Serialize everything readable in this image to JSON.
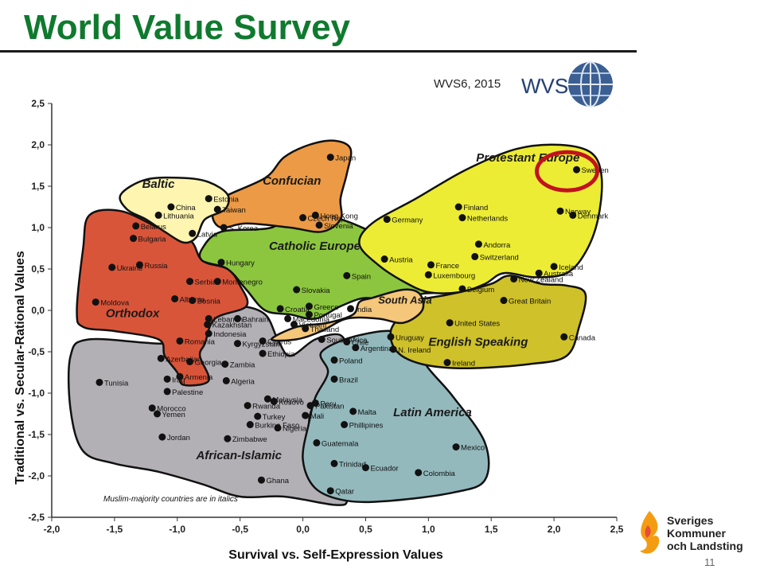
{
  "slide": {
    "title": "World Value Survey",
    "page_number": "11",
    "brand_lines": [
      "Sveriges",
      "Kommuner",
      "och Landsting"
    ]
  },
  "chart_data": {
    "type": "scatter",
    "source_label": "WVS6, 2015",
    "logo_text": "WVS",
    "xlabel": "Survival vs. Self-Expression Values",
    "ylabel": "Traditional vs. Secular-Rational Values",
    "xlim": [
      -2.0,
      2.5
    ],
    "ylim": [
      -2.5,
      2.5
    ],
    "xticks": [
      "-2,0",
      "-1,5",
      "-1,0",
      "-0,5",
      "0,0",
      "0,5",
      "1,0",
      "1,5",
      "2,0",
      "2,5"
    ],
    "yticks": [
      "2,5",
      "2,0",
      "1,5",
      "1,0",
      "0,5",
      "0,0",
      "-0,5",
      "-1,0",
      "-1,5",
      "-2,0",
      "-2,5"
    ],
    "footnote": "Muslim-majority countries are in italics",
    "highlight": "Sweden",
    "clusters": [
      {
        "name": "Baltic",
        "color": "#fdf5b0"
      },
      {
        "name": "Confucian",
        "color": "#ec9a45"
      },
      {
        "name": "Protestant Europe",
        "color": "#ecec35"
      },
      {
        "name": "Catholic Europe",
        "color": "#8cc63f"
      },
      {
        "name": "Orthodox",
        "color": "#d9553a"
      },
      {
        "name": "South Asia",
        "color": "#f5c77a"
      },
      {
        "name": "English Speaking",
        "color": "#cfc12a"
      },
      {
        "name": "Latin America",
        "color": "#93b9bd"
      },
      {
        "name": "African-Islamic",
        "color": "#b2afb5"
      }
    ],
    "points": [
      {
        "name": "Sweden",
        "x": 2.18,
        "y": 1.7
      },
      {
        "name": "Norway",
        "x": 2.05,
        "y": 1.2
      },
      {
        "name": "Denmark",
        "x": 2.15,
        "y": 1.15
      },
      {
        "name": "Finland",
        "x": 1.24,
        "y": 1.25
      },
      {
        "name": "Netherlands",
        "x": 1.27,
        "y": 1.12
      },
      {
        "name": "Germany",
        "x": 0.67,
        "y": 1.1
      },
      {
        "name": "Andorra",
        "x": 1.4,
        "y": 0.8
      },
      {
        "name": "Switzerland",
        "x": 1.37,
        "y": 0.65
      },
      {
        "name": "Iceland",
        "x": 2.0,
        "y": 0.53
      },
      {
        "name": "Australia",
        "x": 1.88,
        "y": 0.45
      },
      {
        "name": "New Zealand",
        "x": 1.68,
        "y": 0.38
      },
      {
        "name": "Luxembourg",
        "x": 1.0,
        "y": 0.43
      },
      {
        "name": "Belgium",
        "x": 1.27,
        "y": 0.26
      },
      {
        "name": "France",
        "x": 1.02,
        "y": 0.55
      },
      {
        "name": "Austria",
        "x": 0.65,
        "y": 0.62
      },
      {
        "name": "Spain",
        "x": 0.35,
        "y": 0.42
      },
      {
        "name": "Great Britain",
        "x": 1.6,
        "y": 0.12
      },
      {
        "name": "United States",
        "x": 1.17,
        "y": -0.15
      },
      {
        "name": "Canada",
        "x": 2.08,
        "y": -0.32
      },
      {
        "name": "Ireland",
        "x": 1.15,
        "y": -0.63
      },
      {
        "name": "N. Ireland",
        "x": 0.72,
        "y": -0.47
      },
      {
        "name": "Japan",
        "x": 0.22,
        "y": 1.85
      },
      {
        "name": "Hong Kong",
        "x": 0.1,
        "y": 1.15
      },
      {
        "name": "Taiwan",
        "x": -0.68,
        "y": 1.22
      },
      {
        "name": "S. Korea",
        "x": -0.63,
        "y": 1.0
      },
      {
        "name": "China",
        "x": -1.05,
        "y": 1.25
      },
      {
        "name": "Estonia",
        "x": -0.75,
        "y": 1.35
      },
      {
        "name": "Lithuania",
        "x": -1.15,
        "y": 1.15
      },
      {
        "name": "Latvia",
        "x": -0.88,
        "y": 0.93
      },
      {
        "name": "Belarus",
        "x": -1.33,
        "y": 1.02
      },
      {
        "name": "Bulgaria",
        "x": -1.35,
        "y": 0.87
      },
      {
        "name": "Czech Rep.",
        "x": 0.0,
        "y": 1.12
      },
      {
        "name": "Slovenia",
        "x": 0.13,
        "y": 1.03
      },
      {
        "name": "Hungary",
        "x": -0.65,
        "y": 0.58
      },
      {
        "name": "Slovakia",
        "x": -0.05,
        "y": 0.25
      },
      {
        "name": "Croatia",
        "x": -0.18,
        "y": 0.02
      },
      {
        "name": "Greece",
        "x": 0.05,
        "y": 0.05
      },
      {
        "name": "Portugal",
        "x": 0.05,
        "y": -0.05
      },
      {
        "name": "India",
        "x": 0.38,
        "y": 0.02
      },
      {
        "name": "Ukraine",
        "x": -1.52,
        "y": 0.52
      },
      {
        "name": "Russia",
        "x": -1.3,
        "y": 0.55
      },
      {
        "name": "Serbia",
        "x": -0.9,
        "y": 0.35
      },
      {
        "name": "Montenegro",
        "x": -0.68,
        "y": 0.35
      },
      {
        "name": "Moldova",
        "x": -1.65,
        "y": 0.1
      },
      {
        "name": "Albania",
        "x": -1.02,
        "y": 0.14
      },
      {
        "name": "Bosnia",
        "x": -0.88,
        "y": 0.12
      },
      {
        "name": "Romania",
        "x": -0.98,
        "y": -0.37
      },
      {
        "name": "Georgia",
        "x": -0.9,
        "y": -0.62
      },
      {
        "name": "Armenia",
        "x": -0.98,
        "y": -0.8
      },
      {
        "name": "Azerbaijan",
        "x": -1.13,
        "y": -0.58
      },
      {
        "name": "Lebanon",
        "x": -0.75,
        "y": -0.1
      },
      {
        "name": "Bahrain",
        "x": -0.52,
        "y": -0.1
      },
      {
        "name": "Kazakhstan",
        "x": -0.76,
        "y": -0.17
      },
      {
        "name": "Indonesia",
        "x": -0.75,
        "y": -0.28
      },
      {
        "name": "Macedonia",
        "x": -0.12,
        "y": -0.1
      },
      {
        "name": "Vietnam",
        "x": -0.07,
        "y": -0.17
      },
      {
        "name": "Thailand",
        "x": 0.02,
        "y": -0.22
      },
      {
        "name": "Cyprus",
        "x": -0.32,
        "y": -0.37
      },
      {
        "name": "South Africa",
        "x": 0.15,
        "y": -0.35
      },
      {
        "name": "Kyrgyzstan",
        "x": -0.52,
        "y": -0.4
      },
      {
        "name": "Ethiopia",
        "x": -0.32,
        "y": -0.52
      },
      {
        "name": "Zambia",
        "x": -0.62,
        "y": -0.65
      },
      {
        "name": "Algeria",
        "x": -0.61,
        "y": -0.85
      },
      {
        "name": "Chile",
        "x": 0.35,
        "y": -0.38
      },
      {
        "name": "Argentina",
        "x": 0.42,
        "y": -0.45
      },
      {
        "name": "Uruguay",
        "x": 0.7,
        "y": -0.32
      },
      {
        "name": "Poland",
        "x": 0.25,
        "y": -0.6
      },
      {
        "name": "Brazil",
        "x": 0.25,
        "y": -0.83
      },
      {
        "name": "Peru",
        "x": 0.1,
        "y": -1.12
      },
      {
        "name": "Malta",
        "x": 0.4,
        "y": -1.22
      },
      {
        "name": "Phillipines",
        "x": 0.33,
        "y": -1.38
      },
      {
        "name": "Mexico",
        "x": 1.22,
        "y": -1.65
      },
      {
        "name": "Colombia",
        "x": 0.92,
        "y": -1.96
      },
      {
        "name": "Ecuador",
        "x": 0.5,
        "y": -1.9
      },
      {
        "name": "Guatemala",
        "x": 0.11,
        "y": -1.6
      },
      {
        "name": "Trinidad",
        "x": 0.25,
        "y": -1.85
      },
      {
        "name": "Tunisia",
        "x": -1.62,
        "y": -0.87
      },
      {
        "name": "Iraq",
        "x": -1.08,
        "y": -0.83
      },
      {
        "name": "Palestine",
        "x": -1.08,
        "y": -0.98
      },
      {
        "name": "Morocco",
        "x": -1.2,
        "y": -1.18
      },
      {
        "name": "Yemen",
        "x": -1.16,
        "y": -1.25
      },
      {
        "name": "Jordan",
        "x": -1.12,
        "y": -1.53
      },
      {
        "name": "Malaysia",
        "x": -0.28,
        "y": -1.07
      },
      {
        "name": "Kosovo",
        "x": -0.23,
        "y": -1.1
      },
      {
        "name": "Rwanda",
        "x": -0.44,
        "y": -1.15
      },
      {
        "name": "Turkey",
        "x": -0.36,
        "y": -1.28
      },
      {
        "name": "Pakistan",
        "x": 0.06,
        "y": -1.15
      },
      {
        "name": "Burkina Faso",
        "x": -0.42,
        "y": -1.38
      },
      {
        "name": "Mali",
        "x": 0.02,
        "y": -1.27
      },
      {
        "name": "Zimbabwe",
        "x": -0.6,
        "y": -1.55
      },
      {
        "name": "Nigeria",
        "x": -0.2,
        "y": -1.42
      },
      {
        "name": "Ghana",
        "x": -0.33,
        "y": -2.05
      },
      {
        "name": "Qatar",
        "x": 0.22,
        "y": -2.18
      }
    ]
  }
}
